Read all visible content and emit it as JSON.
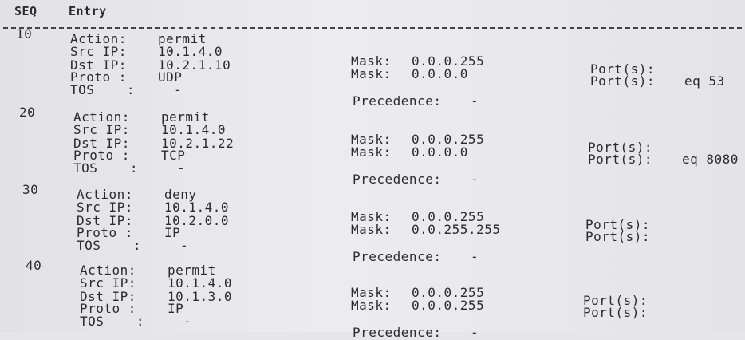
{
  "header": {
    "seq": "SEQ",
    "entry": "Entry"
  },
  "labels": {
    "action": "Action:",
    "src_ip": "Src IP:",
    "dst_ip": "Dst IP:",
    "proto": "Proto :",
    "tos": "TOS    :",
    "mask": "Mask:",
    "ports": "Port(s):",
    "precedence": "Precedence:"
  },
  "entries": [
    {
      "seq": "10",
      "action": "permit",
      "src_ip": "10.1.4.0",
      "src_mask": "0.0.0.255",
      "dst_ip": "10.2.1.10",
      "dst_mask": "0.0.0.0",
      "dst_ports": "eq 53",
      "proto": "UDP",
      "tos": "-",
      "precedence": "-"
    },
    {
      "seq": "20",
      "action": "permit",
      "src_ip": "10.1.4.0",
      "src_mask": "0.0.0.255",
      "dst_ip": "10.2.1.22",
      "dst_mask": "0.0.0.0",
      "dst_ports": "eq 8080",
      "proto": "TCP",
      "tos": "-",
      "precedence": "-"
    },
    {
      "seq": "30",
      "action": "deny",
      "src_ip": "10.1.4.0",
      "src_mask": "0.0.0.255",
      "dst_ip": "10.2.0.0",
      "dst_mask": "0.0.255.255",
      "proto": "IP",
      "tos": "-",
      "precedence": "-"
    },
    {
      "seq": "40",
      "action": "permit",
      "src_ip": "10.1.4.0",
      "src_mask": "0.0.0.255",
      "dst_ip": "10.1.3.0",
      "dst_mask": "0.0.0.255",
      "proto": "IP",
      "tos": "-",
      "precedence": "-"
    }
  ]
}
